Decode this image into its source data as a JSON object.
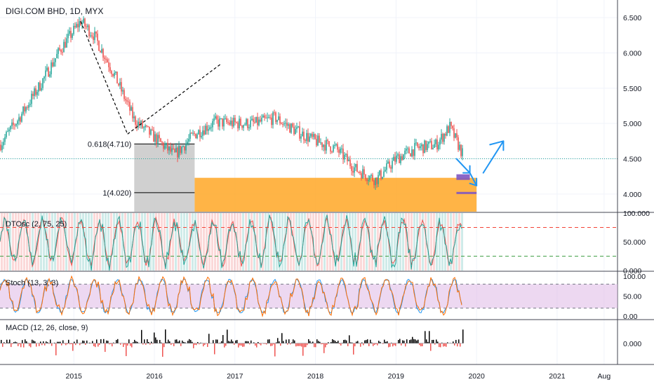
{
  "header": {
    "symbol_title": "DIGI.COM BHD, 1D, MYX"
  },
  "colors": {
    "up": "#26a69a",
    "down": "#ef5350",
    "orange_zone": "#ffa726",
    "purple_box": "#7e57c2",
    "arrow_blue": "#2196f3",
    "grid": "#f0f3fa",
    "fib_gray": "#c8c8c8",
    "pane_divider": "#434651",
    "stoch_fill": "#e1bee7",
    "dotted_green": "#26a69a"
  },
  "chart_data": [
    {
      "type": "candlestick",
      "pane": "price",
      "title": "DIGI.COM BHD, 1D, MYX",
      "x_ticks": [
        "2015",
        "2016",
        "2017",
        "2018",
        "2019",
        "2020",
        "2021",
        "Aug"
      ],
      "y_ticks": [
        "6.500",
        "6.000",
        "5.500",
        "5.000",
        "4.500",
        "4.000"
      ],
      "ylim": [
        3.75,
        6.75
      ],
      "x_range": [
        "2014-02",
        "2021-10"
      ],
      "price_line": 4.5,
      "close_path": [
        [
          "2014-02",
          4.7
        ],
        [
          "2014-05",
          5.1
        ],
        [
          "2014-08",
          5.55
        ],
        [
          "2014-11",
          6.05
        ],
        [
          "2015-02",
          6.45
        ],
        [
          "2015-04",
          6.25
        ],
        [
          "2015-07",
          5.7
        ],
        [
          "2015-10",
          5.05
        ],
        [
          "2016-01",
          4.8
        ],
        [
          "2016-04",
          4.55
        ],
        [
          "2016-07",
          4.85
        ],
        [
          "2016-10",
          5.02
        ],
        [
          "2017-01",
          5.0
        ],
        [
          "2017-04",
          5.0
        ],
        [
          "2017-07",
          5.08
        ],
        [
          "2017-10",
          4.9
        ],
        [
          "2018-01",
          4.75
        ],
        [
          "2018-04",
          4.65
        ],
        [
          "2018-07",
          4.35
        ],
        [
          "2018-10",
          4.2
        ],
        [
          "2019-01",
          4.5
        ],
        [
          "2019-04",
          4.65
        ],
        [
          "2019-07",
          4.7
        ],
        [
          "2019-09",
          4.95
        ],
        [
          "2019-11",
          4.55
        ]
      ],
      "fibonacci": {
        "levels": [
          {
            "label": "0.618(4.710)",
            "value": 4.71
          },
          {
            "label": "1(4.020)",
            "value": 4.02
          }
        ]
      },
      "zones": [
        {
          "name": "support-zone",
          "from_date": "2016-07",
          "to_date": "2020-01",
          "low": 3.75,
          "high": 4.23
        }
      ],
      "annotations": [
        {
          "name": "purple-box-upper",
          "from_date": "2019-10",
          "to_date": "2019-12",
          "low": 4.2,
          "high": 4.28
        },
        {
          "name": "purple-box-lower",
          "from_date": "2019-10",
          "to_date": "2020-01",
          "low": 4.0,
          "high": 4.03
        }
      ]
    },
    {
      "type": "oscillator",
      "pane": "dtosc",
      "label": "DTOsc (2, 75, 25)",
      "y_ticks": [
        "100.000",
        "50.000",
        "0.000"
      ],
      "ylim": [
        0,
        100
      ],
      "levels": [
        75,
        25
      ]
    },
    {
      "type": "oscillator",
      "pane": "stoch",
      "label": "Stoch (13, 3, 3)",
      "y_ticks": [
        "100.00",
        "50.00",
        "0.00"
      ],
      "ylim": [
        0,
        100
      ],
      "levels": [
        80,
        20
      ]
    },
    {
      "type": "histogram",
      "pane": "macd",
      "label": "MACD (12, 26, close, 9)",
      "y_ticks": [
        "0.000"
      ],
      "ylim": [
        -0.2,
        0.2
      ]
    }
  ]
}
